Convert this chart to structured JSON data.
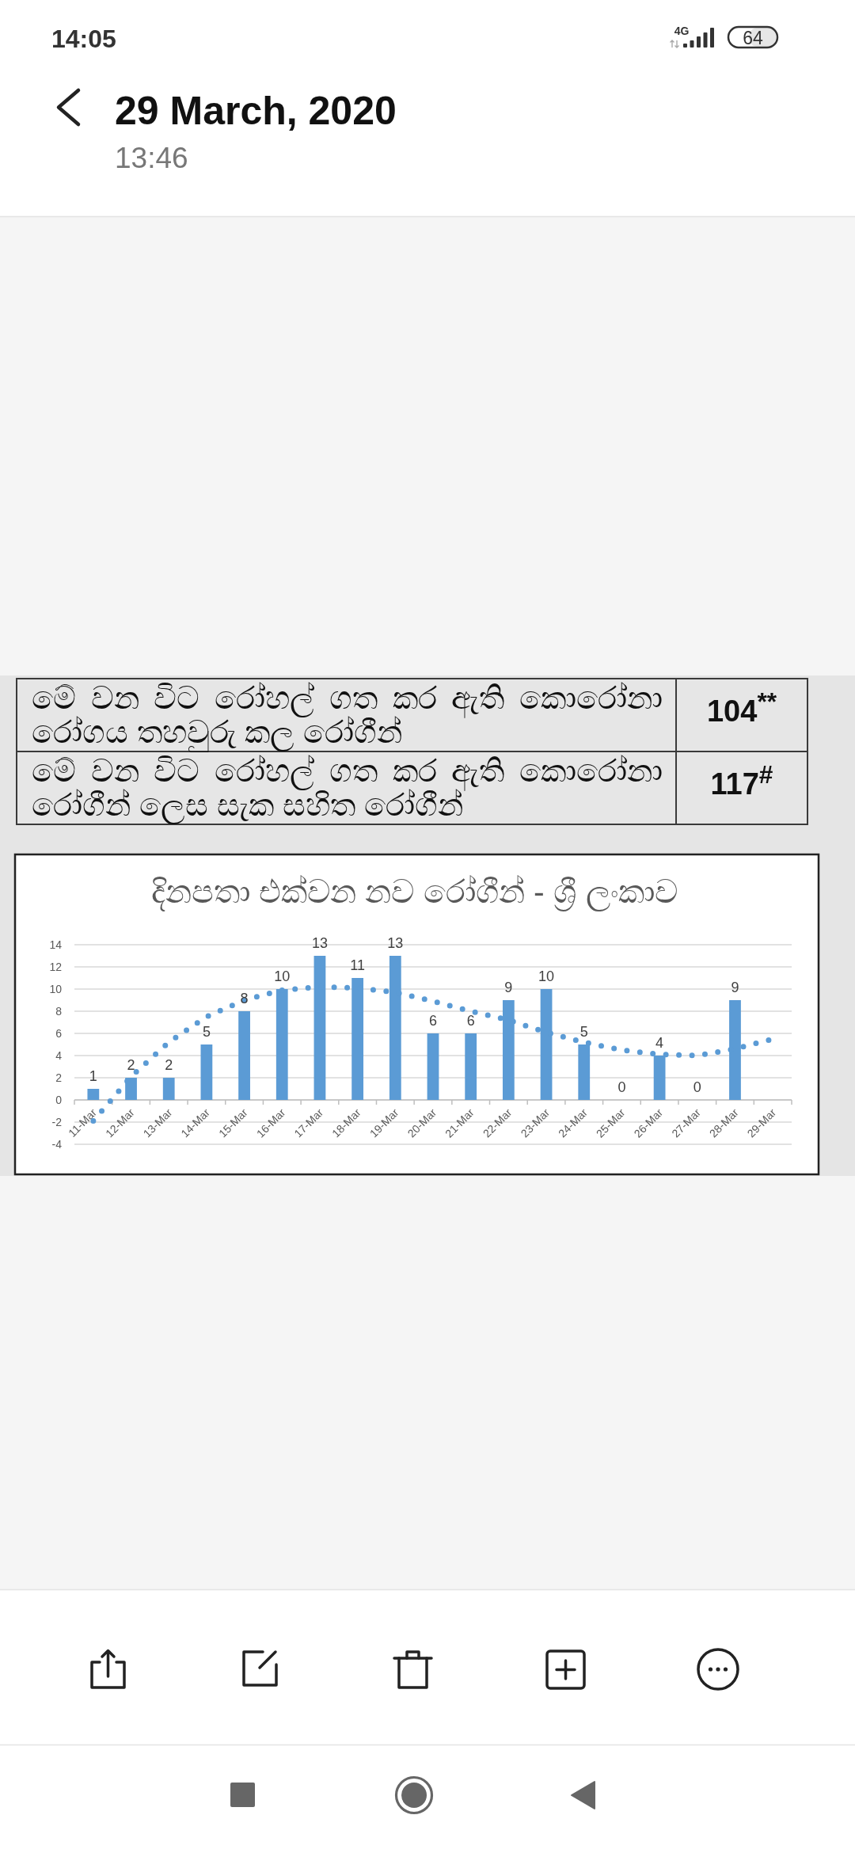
{
  "chart_data": [
    {
      "type": "other",
      "title": "29 March, 2020",
      "subtitle": "13:46",
      "annotations": [
        "14:05",
        "4G",
        "64"
      ]
    },
    {
      "type": "other",
      "annotations": [
        "මේ වන විට රෝහල් ගත කර ඇති කොරෝනා රෝගය තහවුරු කල රෝගීන්",
        "104$^{**}$",
        "මේ වන විට රෝහල් ගත කර ඇති කොරෝනා රෝගීන් ලෙස සැක සහිත රෝගීන්",
        "117$^{#}$"
      ]
    },
    {
      "type": "bar",
      "title": "දිනපතා එක්වන නව රෝගීන් - ශ්‍රී ලංකාව",
      "categories": [
        "11-Mar",
        "12-Mar",
        "13-Mar",
        "14-Mar",
        "15-Mar",
        "16-Mar",
        "17-Mar",
        "18-Mar",
        "19-Mar",
        "20-Mar",
        "21-Mar",
        "22-Mar",
        "23-Mar",
        "24-Mar",
        "25-Mar",
        "26-Mar",
        "27-Mar",
        "28-Mar",
        "29-Mar"
      ],
      "series": [
        {
          "type": "bar",
          "color": "#5b9bd5",
          "values": [
            1,
            2,
            2,
            5,
            8,
            10,
            13,
            11,
            13,
            6,
            6,
            9,
            10,
            5,
            0,
            4,
            0,
            9,
            null
          ],
          "value_labels": [
            "1",
            "2",
            "2",
            "5",
            "8",
            "10",
            "13",
            "11",
            "13",
            "6",
            "6",
            "9",
            "10",
            "5",
            "0",
            "4",
            "0",
            "9",
            null
          ]
        },
        {
          "type": "line",
          "color": "#5b9bd5",
          "line_style": "dotted",
          "values": [
            -1.9,
            2.1,
            5.2,
            7.5,
            9.0,
            9.9,
            10.2,
            10.1,
            9.7,
            8.9,
            8.0,
            7.2,
            6.1,
            5.2,
            4.5,
            4.1,
            4.0,
            4.6,
            5.5
          ]
        }
      ],
      "ylim": [
        -4,
        14
      ],
      "yticks": [
        -4,
        -2,
        0,
        2,
        4,
        6,
        8,
        10,
        12,
        14
      ],
      "grid": "y"
    }
  ]
}
